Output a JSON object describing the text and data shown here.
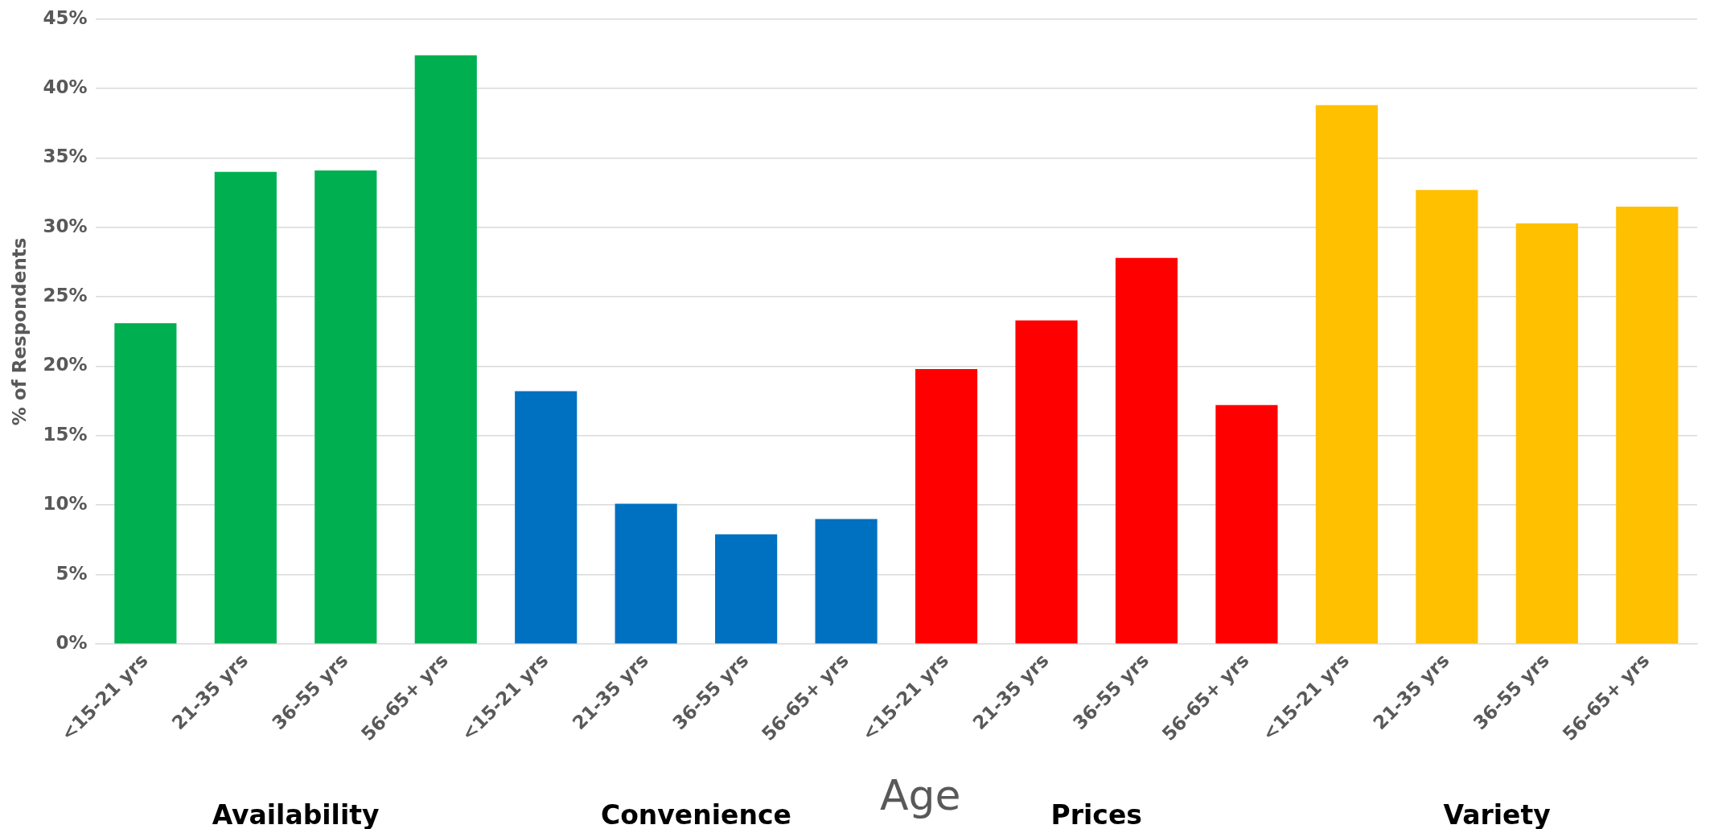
{
  "chart_data": {
    "type": "bar",
    "xlabel": "Age",
    "ylabel": "% of Respondents",
    "categories": [
      "<15-21 yrs",
      "21-35 yrs",
      "36-55 yrs",
      "56-65+ yrs",
      "<15-21 yrs",
      "21-35 yrs",
      "36-55 yrs",
      "56-65+ yrs",
      "<15-21 yrs",
      "21-35 yrs",
      "36-55 yrs",
      "56-65+ yrs",
      "<15-21 yrs",
      "21-35 yrs",
      "36-55 yrs",
      "56-65+ yrs"
    ],
    "values": [
      23.1,
      34.0,
      34.1,
      42.4,
      18.2,
      10.1,
      7.9,
      9.0,
      19.8,
      23.3,
      27.8,
      17.2,
      38.8,
      32.7,
      30.3,
      31.5
    ],
    "colors": [
      "#00b050",
      "#00b050",
      "#00b050",
      "#00b050",
      "#0070c0",
      "#0070c0",
      "#0070c0",
      "#0070c0",
      "#ff0000",
      "#ff0000",
      "#ff0000",
      "#ff0000",
      "#ffc000",
      "#ffc000",
      "#ffc000",
      "#ffc000"
    ],
    "annotations": [
      "Availability",
      "Convenience",
      "Prices",
      "Variety"
    ],
    "ylim": [
      0,
      45
    ],
    "yticks": [
      {
        "value": 0,
        "label": "0%"
      },
      {
        "value": 5,
        "label": "5%"
      },
      {
        "value": 10,
        "label": "10%"
      },
      {
        "value": 15,
        "label": "15%"
      },
      {
        "value": 20,
        "label": "20%"
      },
      {
        "value": 25,
        "label": "25%"
      },
      {
        "value": 30,
        "label": "30%"
      },
      {
        "value": 35,
        "label": "35%"
      },
      {
        "value": 40,
        "label": "40%"
      },
      {
        "value": 45,
        "label": "45%"
      }
    ],
    "grid": "y",
    "legend": false
  }
}
